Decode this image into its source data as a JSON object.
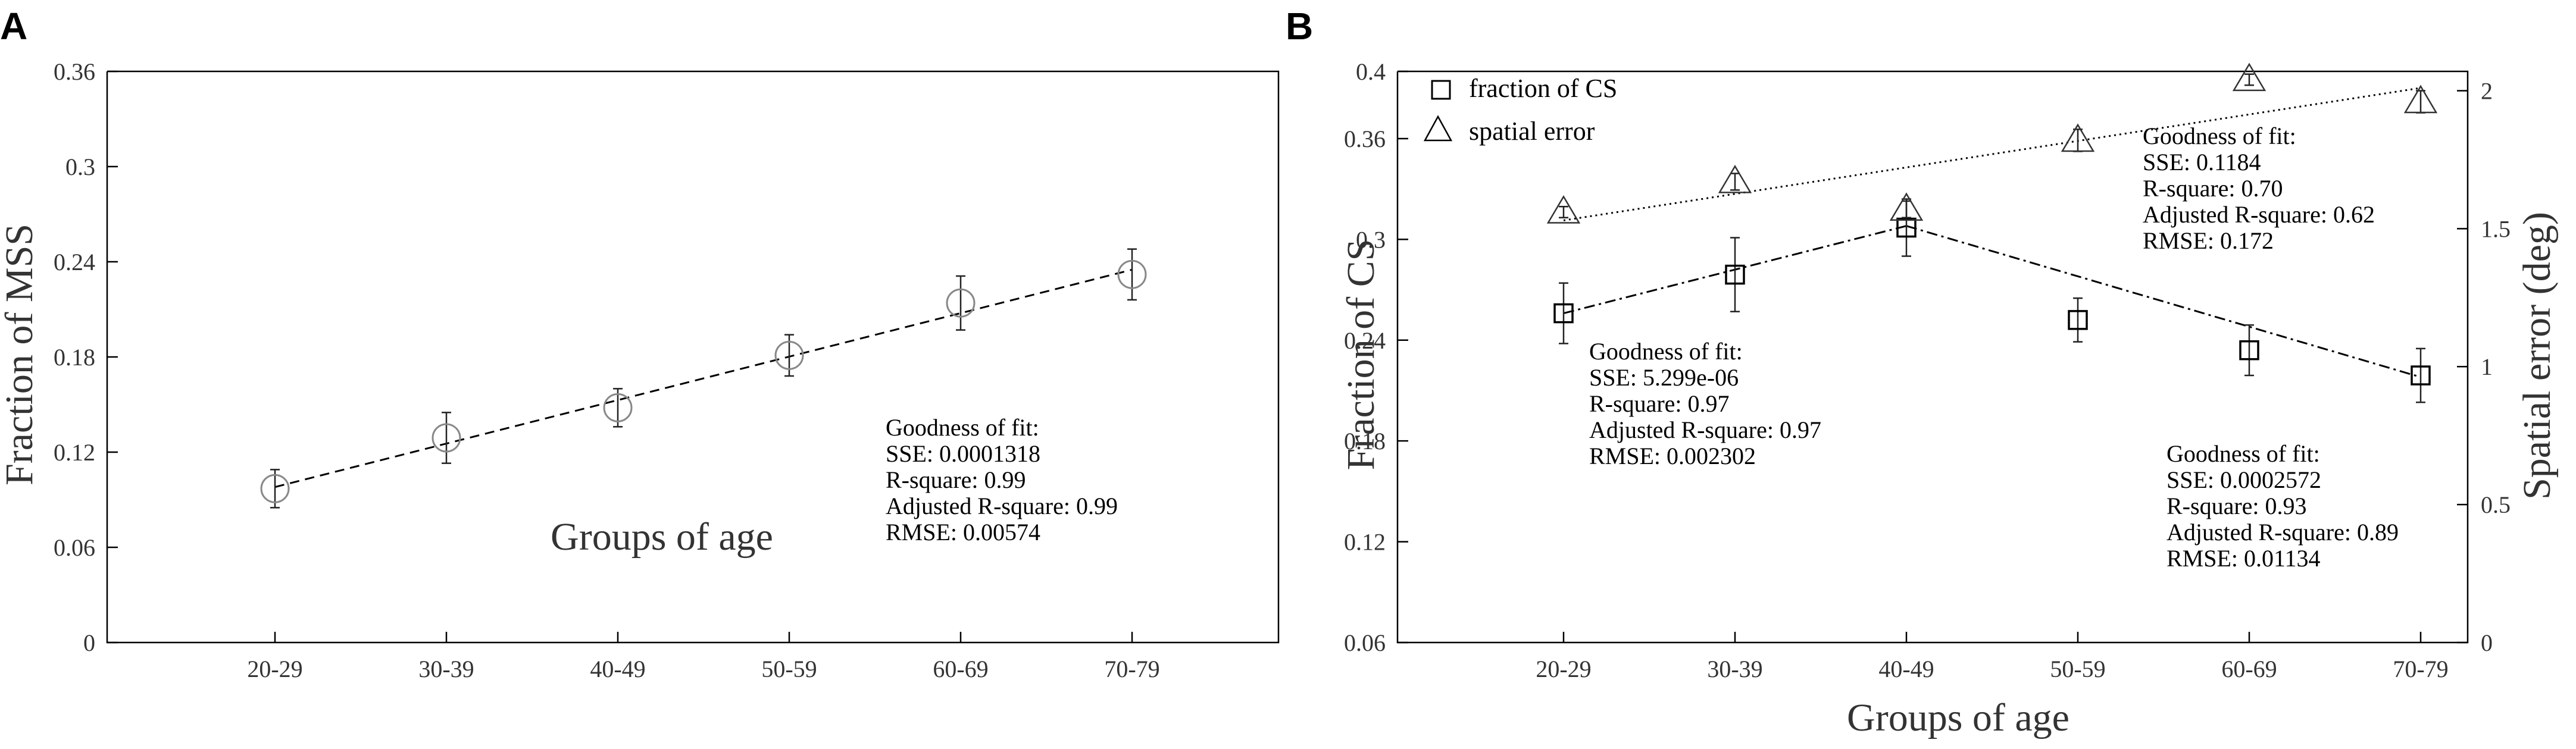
{
  "chart_data": [
    {
      "panel": "A",
      "type": "scatter",
      "categories": [
        "20-29",
        "30-39",
        "40-49",
        "50-59",
        "60-69",
        "70-79"
      ],
      "xlabel": "Groups of age",
      "ylabel": "Fraction of MSS",
      "ylim": [
        0,
        0.36
      ],
      "yticks": [
        "0",
        "0.06",
        "0.12",
        "0.18",
        "0.24",
        "0.3",
        "0.36"
      ],
      "series": [
        {
          "marker": "circle",
          "values": [
            0.097,
            0.129,
            0.148,
            0.181,
            0.214,
            0.232
          ],
          "errors": [
            0.012,
            0.016,
            0.012,
            0.013,
            0.017,
            0.016
          ]
        }
      ],
      "fit": {
        "style": "dashed",
        "from": [
          0,
          0.098
        ],
        "to": [
          5,
          0.235
        ]
      },
      "annotations": [
        {
          "lines": [
            "Goodness of fit:",
            "SSE: 0.0001318",
            "R-square: 0.99",
            "Adjusted R-square: 0.99",
            "RMSE: 0.00574"
          ]
        }
      ]
    },
    {
      "panel": "B",
      "type": "scatter",
      "categories": [
        "20-29",
        "30-39",
        "40-49",
        "50-59",
        "60-69",
        "70-79"
      ],
      "xlabel": "Groups of age",
      "ylabel": "Fraction of CS",
      "ylabel_right": "Spatial error (deg)",
      "ylim": [
        0.06,
        0.4
      ],
      "yticks": [
        "0.06",
        "0.12",
        "0.18",
        "0.24",
        "0.3",
        "0.36",
        "0.4"
      ],
      "ylim_right": [
        0,
        2.07
      ],
      "yticks_right": [
        "0",
        "0.5",
        "1",
        "1.5",
        "2"
      ],
      "legend": [
        "fraction of CS",
        "spatial error"
      ],
      "series": [
        {
          "name": "fraction of CS",
          "marker": "square",
          "axis": "left",
          "values": [
            0.256,
            0.279,
            0.307,
            0.252,
            0.234,
            0.219
          ],
          "errors": [
            0.018,
            0.022,
            0.017,
            0.013,
            0.015,
            0.016
          ]
        },
        {
          "name": "spatial error",
          "marker": "triangle",
          "axis": "right",
          "values": [
            1.56,
            1.67,
            1.57,
            1.82,
            2.04,
            1.96
          ],
          "errors": [
            0.02,
            0.03,
            0.03,
            0.04,
            0.02,
            0.04
          ]
        }
      ],
      "fits": [
        {
          "style": "dotted",
          "axis": "right",
          "from": [
            0,
            1.53
          ],
          "to": [
            5,
            2.01
          ]
        },
        {
          "style": "dashdot",
          "axis": "left",
          "from": [
            0,
            0.256
          ],
          "to": [
            2,
            0.308
          ]
        },
        {
          "style": "dashdot",
          "axis": "left",
          "from": [
            2,
            0.308
          ],
          "to": [
            5,
            0.218
          ]
        }
      ],
      "annotations": [
        {
          "lines": [
            "Goodness of fit:",
            "SSE: 0.1184",
            "R-square: 0.70",
            "Adjusted R-square: 0.62",
            "RMSE: 0.172"
          ]
        },
        {
          "lines": [
            "Goodness of fit:",
            "SSE: 5.299e-06",
            "R-square: 0.97",
            "Adjusted R-square: 0.97",
            "RMSE: 0.002302"
          ]
        },
        {
          "lines": [
            "Goodness of fit:",
            "SSE: 0.0002572",
            "R-square: 0.93",
            "Adjusted R-square: 0.89",
            "RMSE: 0.01134"
          ]
        }
      ]
    }
  ]
}
